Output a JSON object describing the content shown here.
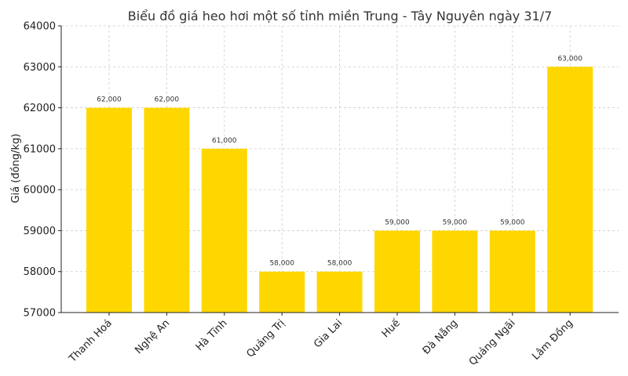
{
  "chart_data": {
    "type": "bar",
    "title": "Biểu đồ giá heo hơi một số tỉnh miền Trung - Tây Nguyên ngày 31/7",
    "xlabel": "",
    "ylabel": "Giá (đồng/kg)",
    "categories": [
      "Thanh Hoá",
      "Nghệ An",
      "Hà Tĩnh",
      "Quảng Trị",
      "Gia Lai",
      "Huế",
      "Đà Nẵng",
      "Quảng Ngãi",
      "Lâm Đồng"
    ],
    "values": [
      62000,
      62000,
      61000,
      58000,
      58000,
      59000,
      59000,
      59000,
      63000
    ],
    "data_labels": [
      "62,000",
      "62,000",
      "61,000",
      "58,000",
      "58,000",
      "59,000",
      "59,000",
      "59,000",
      "63,000"
    ],
    "ylim": [
      57000,
      64000
    ],
    "yticks": [
      57000,
      58000,
      59000,
      60000,
      61000,
      62000,
      63000,
      64000
    ],
    "ytick_labels": [
      "57000",
      "58000",
      "59000",
      "60000",
      "61000",
      "62000",
      "63000",
      "64000"
    ],
    "grid": true,
    "bar_color": "#FFD700"
  }
}
